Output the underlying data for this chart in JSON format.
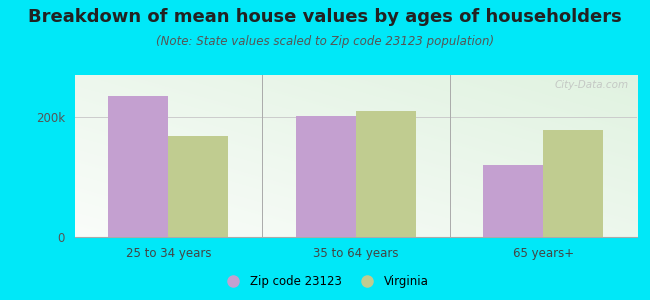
{
  "title": "Breakdown of mean house values by ages of householders",
  "subtitle": "(Note: State values scaled to Zip code 23123 population)",
  "categories": [
    "25 to 34 years",
    "35 to 64 years",
    "65 years+"
  ],
  "zip_values": [
    235000,
    202000,
    120000
  ],
  "state_values": [
    168000,
    210000,
    178000
  ],
  "ylim": [
    0,
    270000
  ],
  "zip_color": "#c4a0d0",
  "state_color": "#c0cc90",
  "outer_bg": "#00e8f8",
  "legend_zip_label": "Zip code 23123",
  "legend_state_label": "Virginia",
  "watermark": "City-Data.com",
  "title_fontsize": 13,
  "subtitle_fontsize": 8.5,
  "bar_width": 0.32
}
